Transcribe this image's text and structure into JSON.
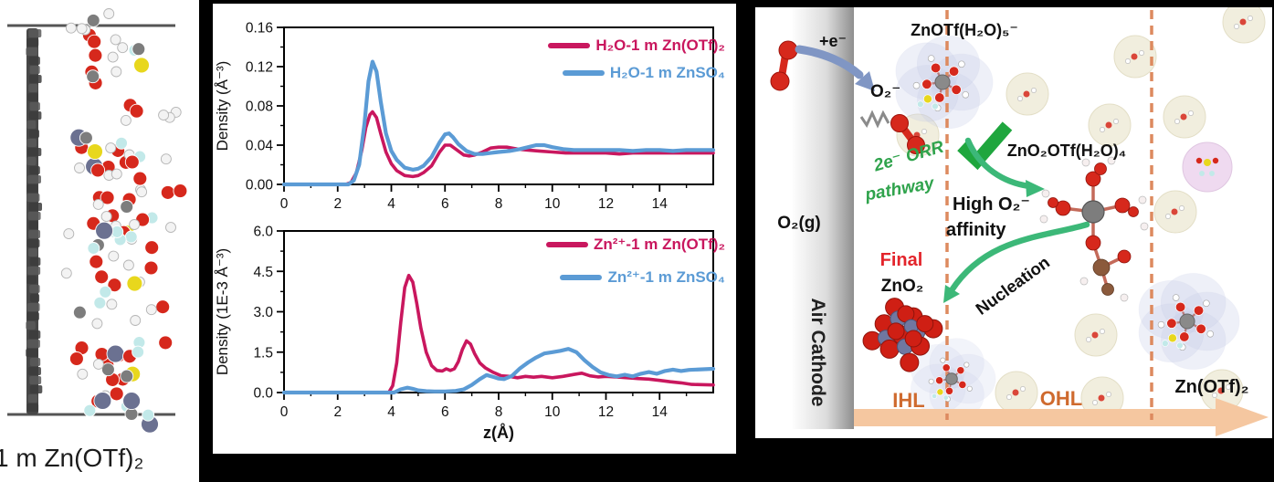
{
  "figure": {
    "background": "#000000"
  },
  "panels": {
    "left": {
      "caption": "1 m Zn(OTf)₂",
      "atom_colors": {
        "O": "#d6281c",
        "H": "#f3f3f3",
        "F": "#c2e9e9",
        "S": "#e8d71d",
        "Zn": "#6b7191",
        "C": "#7d7d7d"
      },
      "electrode_color": "#474747",
      "boundary_color": "#555555"
    },
    "middle": {
      "border_color": "#000000"
    },
    "right": {
      "labels": {
        "plus_electron": "+e⁻",
        "znotf_complex": "ZnOTf(H₂O)₅⁻",
        "superoxide": "O₂⁻",
        "orr_line1": "2e⁻ ORR",
        "orr_line2": "pathway",
        "zno2otf": "ZnO₂OTf(H₂O)₄",
        "affinity_line1": "High O₂⁻",
        "affinity_line2": "affinity",
        "nucleation": "Nucleation",
        "final": "Final",
        "zno2": "ZnO₂",
        "o2_gas": "O₂(g)",
        "air_cathode": "Air Cathode",
        "ihl": "IHL",
        "ohl": "OHL",
        "znotf2": "Zn(OTf)₂"
      },
      "colors": {
        "green_arrow": "#3cb878",
        "green_text": "#2fa34c",
        "check": "#1fa63e",
        "blue_arrow": "#8096c4",
        "orange_text": "#cf6a2e",
        "dashed_line": "#dd8a5f",
        "band": "#f5c7a0",
        "red_text": "#e3242b",
        "o2_red": "#d6281c",
        "zn_slate": "#7077a0",
        "blob_lavender": "#c9cfe9",
        "blob_cream": "#f1eedd",
        "blob_pink": "#eed7ef"
      }
    }
  },
  "chart_data": [
    {
      "type": "line",
      "title": "",
      "xlabel": "",
      "ylabel": "Density (Å⁻³)",
      "xlim": [
        0,
        16
      ],
      "ylim": [
        0,
        0.16
      ],
      "xticks": [
        0,
        2,
        4,
        6,
        8,
        10,
        12,
        14
      ],
      "yticks": [
        0.0,
        0.04,
        0.08,
        0.12,
        0.16
      ],
      "ytick_labels": [
        "0.00",
        "0.04",
        "0.08",
        "0.12",
        "0.16"
      ],
      "legend_position": "top-right",
      "grid": false,
      "series": [
        {
          "name": "H₂O-1 m Zn(OTf)₂",
          "color": "#C9175E",
          "x": [
            0,
            2.3,
            2.5,
            2.7,
            2.9,
            3.05,
            3.2,
            3.3,
            3.45,
            3.6,
            3.8,
            4.0,
            4.2,
            4.5,
            4.8,
            5.0,
            5.2,
            5.5,
            5.8,
            6.0,
            6.2,
            6.45,
            6.7,
            6.9,
            7.1,
            7.4,
            7.7,
            8.0,
            8.3,
            8.7,
            9.1,
            9.5,
            10.0,
            10.5,
            11.0,
            11.5,
            12.0,
            12.5,
            13.0,
            13.5,
            14.0,
            14.5,
            15.0,
            16.0
          ],
          "y": [
            0,
            0,
            0.002,
            0.012,
            0.035,
            0.058,
            0.071,
            0.074,
            0.068,
            0.052,
            0.033,
            0.021,
            0.014,
            0.009,
            0.008,
            0.009,
            0.012,
            0.019,
            0.033,
            0.04,
            0.04,
            0.035,
            0.03,
            0.029,
            0.03,
            0.033,
            0.037,
            0.038,
            0.038,
            0.036,
            0.035,
            0.034,
            0.033,
            0.032,
            0.032,
            0.032,
            0.032,
            0.031,
            0.032,
            0.032,
            0.032,
            0.032,
            0.032,
            0.032
          ]
        },
        {
          "name": "H₂O-1 m ZnSO₄",
          "color": "#5B9BD5",
          "x": [
            0,
            2.4,
            2.6,
            2.8,
            3.0,
            3.15,
            3.3,
            3.45,
            3.6,
            3.8,
            4.0,
            4.2,
            4.5,
            4.8,
            5.0,
            5.2,
            5.5,
            5.8,
            6.0,
            6.15,
            6.3,
            6.5,
            6.8,
            7.1,
            7.4,
            7.7,
            8.0,
            8.4,
            8.8,
            9.1,
            9.4,
            9.7,
            10.0,
            10.4,
            10.8,
            11.2,
            11.6,
            12.0,
            12.5,
            13.0,
            13.5,
            14.0,
            14.5,
            15.0,
            16.0
          ],
          "y": [
            0,
            0,
            0.004,
            0.02,
            0.062,
            0.105,
            0.125,
            0.115,
            0.085,
            0.052,
            0.034,
            0.025,
            0.017,
            0.015,
            0.016,
            0.019,
            0.028,
            0.043,
            0.051,
            0.052,
            0.048,
            0.041,
            0.034,
            0.031,
            0.031,
            0.032,
            0.033,
            0.034,
            0.036,
            0.038,
            0.04,
            0.04,
            0.038,
            0.036,
            0.035,
            0.035,
            0.035,
            0.035,
            0.035,
            0.034,
            0.035,
            0.035,
            0.034,
            0.035,
            0.035
          ]
        }
      ]
    },
    {
      "type": "line",
      "title": "",
      "xlabel": "z(Å)",
      "ylabel": "Density (1E-3 Å⁻³)",
      "xlim": [
        0,
        16
      ],
      "ylim": [
        0,
        6
      ],
      "xticks": [
        0,
        2,
        4,
        6,
        8,
        10,
        12,
        14
      ],
      "yticks": [
        0.0,
        1.5,
        3.0,
        4.5,
        6.0
      ],
      "ytick_labels": [
        "0.0",
        "1.5",
        "3.0",
        "4.5",
        "6.0"
      ],
      "legend_position": "top-right",
      "grid": false,
      "series": [
        {
          "name": "Zn²⁺-1 m Zn(OTf)₂",
          "color": "#C9175E",
          "x": [
            0,
            3.9,
            4.05,
            4.2,
            4.35,
            4.5,
            4.65,
            4.8,
            4.95,
            5.1,
            5.3,
            5.5,
            5.7,
            5.9,
            6.05,
            6.2,
            6.35,
            6.5,
            6.65,
            6.8,
            6.95,
            7.1,
            7.3,
            7.5,
            7.8,
            8.1,
            8.4,
            8.7,
            9.0,
            9.3,
            9.6,
            10.0,
            10.4,
            10.8,
            11.1,
            11.4,
            11.7,
            12.0,
            12.4,
            12.8,
            13.2,
            13.6,
            14.0,
            14.4,
            14.8,
            15.2,
            16.0
          ],
          "y": [
            0,
            0,
            0.25,
            1.1,
            2.6,
            3.9,
            4.35,
            4.1,
            3.3,
            2.4,
            1.5,
            1.0,
            0.82,
            0.8,
            0.88,
            0.82,
            0.88,
            1.15,
            1.6,
            1.92,
            1.8,
            1.45,
            1.1,
            0.92,
            0.75,
            0.62,
            0.6,
            0.55,
            0.6,
            0.57,
            0.6,
            0.55,
            0.6,
            0.67,
            0.72,
            0.62,
            0.58,
            0.6,
            0.58,
            0.55,
            0.52,
            0.5,
            0.45,
            0.4,
            0.36,
            0.3,
            0.28
          ]
        },
        {
          "name": "Zn²⁺-1 m ZnSO₄",
          "color": "#5B9BD5",
          "x": [
            0,
            4.1,
            4.35,
            4.6,
            4.8,
            5.0,
            5.3,
            5.6,
            6.0,
            6.4,
            6.7,
            7.0,
            7.3,
            7.55,
            7.8,
            8.0,
            8.2,
            8.5,
            8.8,
            9.1,
            9.4,
            9.7,
            10.0,
            10.3,
            10.6,
            10.9,
            11.2,
            11.5,
            11.8,
            12.1,
            12.4,
            12.7,
            13.0,
            13.3,
            13.6,
            13.9,
            14.2,
            14.5,
            14.8,
            15.1,
            16.0
          ],
          "y": [
            0,
            0,
            0.12,
            0.18,
            0.14,
            0.08,
            0.05,
            0.04,
            0.04,
            0.06,
            0.12,
            0.28,
            0.5,
            0.65,
            0.58,
            0.52,
            0.5,
            0.62,
            0.9,
            1.12,
            1.3,
            1.45,
            1.5,
            1.55,
            1.62,
            1.5,
            1.2,
            0.95,
            0.75,
            0.65,
            0.6,
            0.66,
            0.6,
            0.7,
            0.76,
            0.7,
            0.8,
            0.85,
            0.8,
            0.84,
            0.88
          ]
        }
      ]
    }
  ]
}
